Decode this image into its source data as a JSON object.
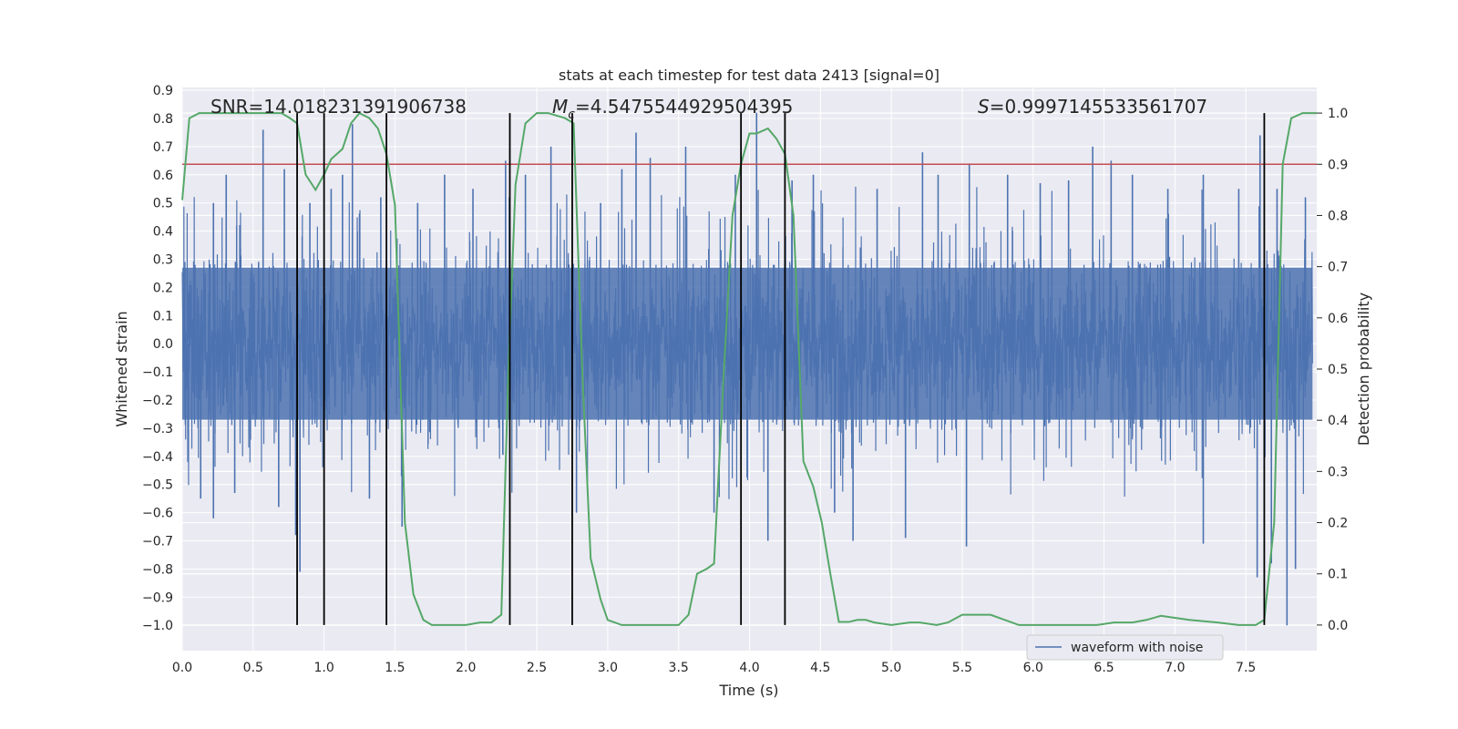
{
  "chart_data": {
    "type": "line",
    "title": "stats at each timestep for test data 2413 [signal=0]",
    "xlabel": "Time (s)",
    "ylabel": "Whitened strain",
    "ylabel_right": "Detection probability",
    "xlim": [
      0.0,
      8.0
    ],
    "ylim": [
      -1.09,
      0.91
    ],
    "ylim_right": [
      -0.05,
      1.05
    ],
    "x_ticks": [
      "0.0",
      "0.5",
      "1.0",
      "1.5",
      "2.0",
      "2.5",
      "3.0",
      "3.5",
      "4.0",
      "4.5",
      "5.0",
      "5.5",
      "6.0",
      "6.5",
      "7.0",
      "7.5"
    ],
    "x_tick_values": [
      0.0,
      0.5,
      1.0,
      1.5,
      2.0,
      2.5,
      3.0,
      3.5,
      4.0,
      4.5,
      5.0,
      5.5,
      6.0,
      6.5,
      7.0,
      7.5
    ],
    "y_ticks": [
      "0.9",
      "0.8",
      "0.7",
      "0.6",
      "0.5",
      "0.4",
      "0.3",
      "0.2",
      "0.1",
      "0.0",
      "−0.1",
      "−0.2",
      "−0.3",
      "−0.4",
      "−0.5",
      "−0.6",
      "−0.7",
      "−0.8",
      "−0.9",
      "−1.0"
    ],
    "y_tick_values": [
      0.9,
      0.8,
      0.7,
      0.6,
      0.5,
      0.4,
      0.3,
      0.2,
      0.1,
      0.0,
      -0.1,
      -0.2,
      -0.3,
      -0.4,
      -0.5,
      -0.6,
      -0.7,
      -0.8,
      -0.9,
      -1.0
    ],
    "y2_ticks": [
      "1.0",
      "0.9",
      "0.8",
      "0.7",
      "0.6",
      "0.5",
      "0.4",
      "0.3",
      "0.2",
      "0.1",
      "0.0"
    ],
    "y2_tick_values": [
      1.0,
      0.9,
      0.8,
      0.7,
      0.6,
      0.5,
      0.4,
      0.3,
      0.2,
      0.1,
      0.0
    ],
    "annotations": {
      "snr": "SNR=14.018231391906738",
      "mc_symbol": "M",
      "mc_sub": "c",
      "mc_value": "=4.5475544929504395",
      "s_symbol": "S",
      "s_value": "=0.9997145533561707"
    },
    "legend": {
      "label": "waveform with noise",
      "position": "lower-right"
    },
    "threshold": {
      "value": 0.9,
      "axis": "right",
      "color": "#c44e52"
    },
    "vertical_lines_x": [
      0.81,
      1.0,
      1.44,
      2.31,
      2.75,
      3.94,
      4.25,
      7.63
    ],
    "waveform": {
      "amplitude_typical": 0.3,
      "amplitude_max": 0.82,
      "min": -1.0,
      "seed": 2413,
      "color": "#4c72b0"
    },
    "waveform_spikes": [
      {
        "x": 0.04,
        "y": -0.42
      },
      {
        "x": 0.13,
        "y": -0.55
      },
      {
        "x": 0.22,
        "y": 0.5
      },
      {
        "x": 0.22,
        "y": -0.62
      },
      {
        "x": 0.31,
        "y": 0.6
      },
      {
        "x": 0.37,
        "y": -0.53
      },
      {
        "x": 0.57,
        "y": 0.76
      },
      {
        "x": 0.68,
        "y": -0.58
      },
      {
        "x": 0.72,
        "y": 0.62
      },
      {
        "x": 0.8,
        "y": -0.68
      },
      {
        "x": 0.83,
        "y": -0.81
      },
      {
        "x": 0.9,
        "y": 0.5
      },
      {
        "x": 1.05,
        "y": 0.55
      },
      {
        "x": 1.13,
        "y": 0.6
      },
      {
        "x": 1.2,
        "y": 0.78
      },
      {
        "x": 1.32,
        "y": -0.55
      },
      {
        "x": 1.4,
        "y": 0.52
      },
      {
        "x": 1.55,
        "y": -0.65
      },
      {
        "x": 1.66,
        "y": 0.5
      },
      {
        "x": 1.85,
        "y": 0.6
      },
      {
        "x": 2.05,
        "y": 0.55
      },
      {
        "x": 2.28,
        "y": 0.65
      },
      {
        "x": 2.42,
        "y": 0.6
      },
      {
        "x": 2.6,
        "y": 0.7
      },
      {
        "x": 2.78,
        "y": -0.6
      },
      {
        "x": 2.95,
        "y": 0.5
      },
      {
        "x": 3.1,
        "y": 0.62
      },
      {
        "x": 3.2,
        "y": 0.75
      },
      {
        "x": 3.3,
        "y": 0.66
      },
      {
        "x": 3.55,
        "y": 0.7
      },
      {
        "x": 3.75,
        "y": -0.6
      },
      {
        "x": 3.9,
        "y": 0.6
      },
      {
        "x": 4.05,
        "y": 0.82
      },
      {
        "x": 4.13,
        "y": -0.7
      },
      {
        "x": 4.3,
        "y": 0.58
      },
      {
        "x": 4.45,
        "y": 0.6
      },
      {
        "x": 4.6,
        "y": -0.6
      },
      {
        "x": 4.73,
        "y": -0.7
      },
      {
        "x": 4.9,
        "y": 0.55
      },
      {
        "x": 5.1,
        "y": -0.69
      },
      {
        "x": 5.22,
        "y": 0.68
      },
      {
        "x": 5.33,
        "y": 0.6
      },
      {
        "x": 5.53,
        "y": -0.72
      },
      {
        "x": 5.55,
        "y": 0.64
      },
      {
        "x": 5.82,
        "y": 0.6
      },
      {
        "x": 6.05,
        "y": 0.57
      },
      {
        "x": 6.25,
        "y": 0.58
      },
      {
        "x": 6.42,
        "y": 0.7
      },
      {
        "x": 6.55,
        "y": 0.65
      },
      {
        "x": 6.7,
        "y": 0.6
      },
      {
        "x": 6.95,
        "y": 0.55
      },
      {
        "x": 7.2,
        "y": 0.6
      },
      {
        "x": 7.2,
        "y": -0.71
      },
      {
        "x": 7.45,
        "y": 0.55
      },
      {
        "x": 7.6,
        "y": 0.74
      },
      {
        "x": 7.58,
        "y": -0.83
      },
      {
        "x": 7.68,
        "y": -0.78
      },
      {
        "x": 7.72,
        "y": 0.55
      },
      {
        "x": 7.79,
        "y": -1.0
      },
      {
        "x": 7.85,
        "y": -0.8
      },
      {
        "x": 7.92,
        "y": 0.52
      }
    ],
    "probability_series": {
      "name": "detection probability",
      "color": "#55a868",
      "x": [
        0.0,
        0.05,
        0.12,
        0.2,
        0.3,
        0.5,
        0.7,
        0.76,
        0.81,
        0.87,
        0.94,
        1.0,
        1.05,
        1.13,
        1.19,
        1.25,
        1.32,
        1.38,
        1.44,
        1.5,
        1.57,
        1.63,
        1.7,
        1.76,
        1.88,
        2.0,
        2.1,
        2.18,
        2.25,
        2.3,
        2.35,
        2.42,
        2.5,
        2.58,
        2.7,
        2.76,
        2.82,
        2.88,
        2.95,
        3.0,
        3.1,
        3.3,
        3.5,
        3.57,
        3.63,
        3.7,
        3.75,
        3.82,
        3.88,
        3.94,
        4.0,
        4.05,
        4.13,
        4.19,
        4.25,
        4.31,
        4.38,
        4.45,
        4.51,
        4.57,
        4.63,
        4.7,
        4.76,
        4.82,
        4.88,
        5.0,
        5.13,
        5.2,
        5.32,
        5.4,
        5.5,
        5.7,
        5.9,
        6.1,
        6.3,
        6.45,
        6.57,
        6.7,
        6.8,
        6.9,
        7.1,
        7.3,
        7.45,
        7.5,
        7.57,
        7.63,
        7.7,
        7.76,
        7.82,
        7.9,
        8.0
      ],
      "y": [
        0.83,
        0.99,
        1.0,
        1.0,
        1.0,
        1.0,
        1.0,
        0.99,
        0.98,
        0.88,
        0.85,
        0.88,
        0.91,
        0.93,
        0.98,
        1.0,
        0.99,
        0.97,
        0.92,
        0.82,
        0.2,
        0.06,
        0.01,
        0.0,
        0.0,
        0.0,
        0.005,
        0.005,
        0.02,
        0.5,
        0.86,
        0.98,
        1.0,
        1.0,
        0.99,
        0.98,
        0.5,
        0.13,
        0.05,
        0.01,
        0.0,
        0.0,
        0.0,
        0.02,
        0.1,
        0.11,
        0.12,
        0.5,
        0.8,
        0.9,
        0.96,
        0.96,
        0.97,
        0.95,
        0.92,
        0.8,
        0.32,
        0.27,
        0.2,
        0.1,
        0.006,
        0.006,
        0.01,
        0.01,
        0.005,
        0.0,
        0.005,
        0.005,
        0.0,
        0.005,
        0.02,
        0.02,
        0.0,
        0.0,
        0.0,
        0.0,
        0.005,
        0.005,
        0.01,
        0.018,
        0.01,
        0.005,
        0.0,
        0.0,
        0.0,
        0.01,
        0.2,
        0.9,
        0.99,
        1.0,
        1.0
      ]
    }
  }
}
